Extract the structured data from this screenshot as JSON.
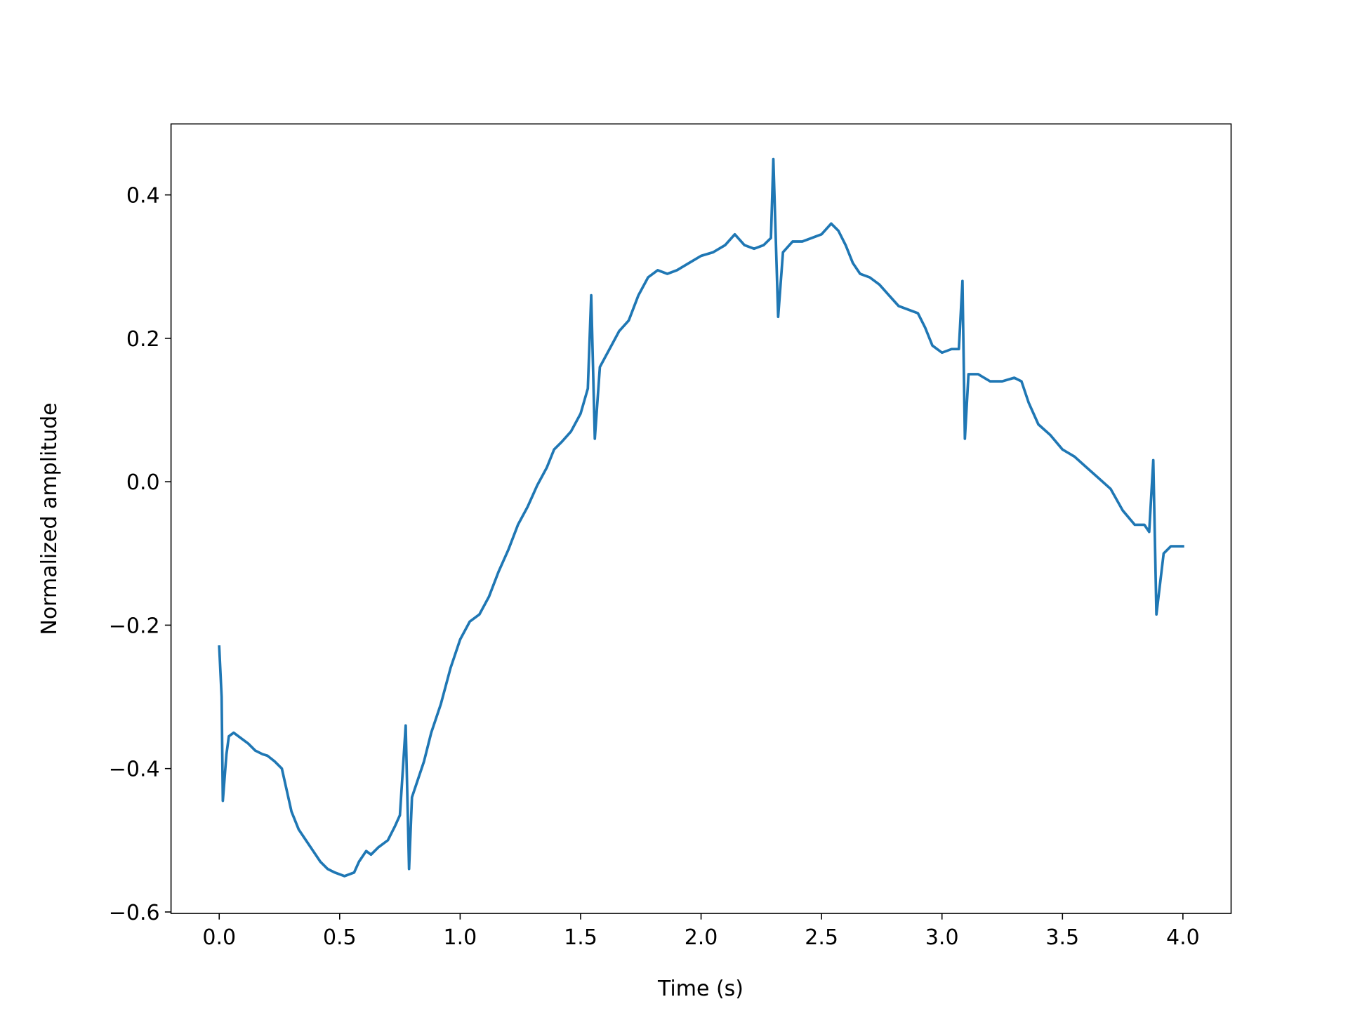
{
  "chart_data": {
    "type": "line",
    "xlabel": "Time (s)",
    "ylabel": "Normalized amplitude",
    "xlim": [
      -0.2,
      4.2
    ],
    "ylim": [
      -0.602,
      0.499
    ],
    "xticks": [
      {
        "value": 0,
        "label": "0.0"
      },
      {
        "value": 0.5,
        "label": "0.5"
      },
      {
        "value": 1,
        "label": "1.0"
      },
      {
        "value": 1.5,
        "label": "1.5"
      },
      {
        "value": 2,
        "label": "2.0"
      },
      {
        "value": 2.5,
        "label": "2.5"
      },
      {
        "value": 3,
        "label": "3.0"
      },
      {
        "value": 3.5,
        "label": "3.5"
      },
      {
        "value": 4,
        "label": "4.0"
      }
    ],
    "yticks": [
      {
        "value": -0.6,
        "label": "−0.6"
      },
      {
        "value": -0.4,
        "label": "−0.4"
      },
      {
        "value": -0.2,
        "label": "−0.2"
      },
      {
        "value": 0,
        "label": "0.0"
      },
      {
        "value": 0.2,
        "label": "0.2"
      },
      {
        "value": 0.4,
        "label": "0.4"
      }
    ],
    "grid": false,
    "series": [
      {
        "color": "#1f77b4",
        "x": [
          0,
          0.01,
          0.015,
          0.03,
          0.04,
          0.06,
          0.08,
          0.1,
          0.12,
          0.15,
          0.18,
          0.2,
          0.23,
          0.26,
          0.28,
          0.3,
          0.33,
          0.36,
          0.39,
          0.42,
          0.45,
          0.48,
          0.52,
          0.56,
          0.58,
          0.61,
          0.63,
          0.66,
          0.7,
          0.73,
          0.75,
          0.774,
          0.788,
          0.8,
          0.82,
          0.85,
          0.88,
          0.92,
          0.96,
          1.0,
          1.04,
          1.08,
          1.12,
          1.16,
          1.2,
          1.24,
          1.28,
          1.32,
          1.36,
          1.39,
          1.42,
          1.46,
          1.5,
          1.53,
          1.544,
          1.559,
          1.58,
          1.62,
          1.66,
          1.7,
          1.74,
          1.78,
          1.82,
          1.86,
          1.9,
          1.95,
          2.0,
          2.05,
          2.1,
          2.14,
          2.18,
          2.22,
          2.26,
          2.29,
          2.3,
          2.32,
          2.34,
          2.38,
          2.42,
          2.46,
          2.5,
          2.54,
          2.57,
          2.6,
          2.63,
          2.66,
          2.7,
          2.74,
          2.78,
          2.82,
          2.86,
          2.9,
          2.93,
          2.96,
          3.0,
          3.04,
          3.07,
          3.085,
          3.095,
          3.11,
          3.15,
          3.2,
          3.25,
          3.3,
          3.33,
          3.36,
          3.4,
          3.45,
          3.5,
          3.55,
          3.6,
          3.65,
          3.7,
          3.75,
          3.8,
          3.84,
          3.86,
          3.877,
          3.89,
          3.92,
          3.95,
          4.0
        ],
        "values": [
          -0.23,
          -0.3,
          -0.445,
          -0.38,
          -0.355,
          -0.35,
          -0.355,
          -0.36,
          -0.365,
          -0.375,
          -0.38,
          -0.382,
          -0.39,
          -0.4,
          -0.43,
          -0.46,
          -0.485,
          -0.5,
          -0.515,
          -0.53,
          -0.54,
          -0.545,
          -0.55,
          -0.545,
          -0.53,
          -0.515,
          -0.52,
          -0.51,
          -0.5,
          -0.48,
          -0.465,
          -0.34,
          -0.54,
          -0.44,
          -0.42,
          -0.39,
          -0.35,
          -0.31,
          -0.26,
          -0.22,
          -0.195,
          -0.185,
          -0.16,
          -0.125,
          -0.095,
          -0.06,
          -0.035,
          -0.005,
          0.02,
          0.045,
          0.055,
          0.07,
          0.095,
          0.13,
          0.26,
          0.06,
          0.16,
          0.185,
          0.21,
          0.225,
          0.26,
          0.285,
          0.295,
          0.29,
          0.295,
          0.305,
          0.315,
          0.32,
          0.33,
          0.345,
          0.33,
          0.325,
          0.33,
          0.34,
          0.45,
          0.23,
          0.32,
          0.335,
          0.335,
          0.34,
          0.345,
          0.36,
          0.35,
          0.33,
          0.305,
          0.29,
          0.285,
          0.275,
          0.26,
          0.245,
          0.24,
          0.235,
          0.215,
          0.19,
          0.18,
          0.185,
          0.185,
          0.28,
          0.06,
          0.15,
          0.15,
          0.14,
          0.14,
          0.145,
          0.14,
          0.11,
          0.08,
          0.065,
          0.045,
          0.035,
          0.02,
          0.005,
          -0.01,
          -0.04,
          -0.06,
          -0.06,
          -0.07,
          0.03,
          -0.185,
          -0.1,
          -0.09,
          -0.09
        ]
      }
    ]
  }
}
